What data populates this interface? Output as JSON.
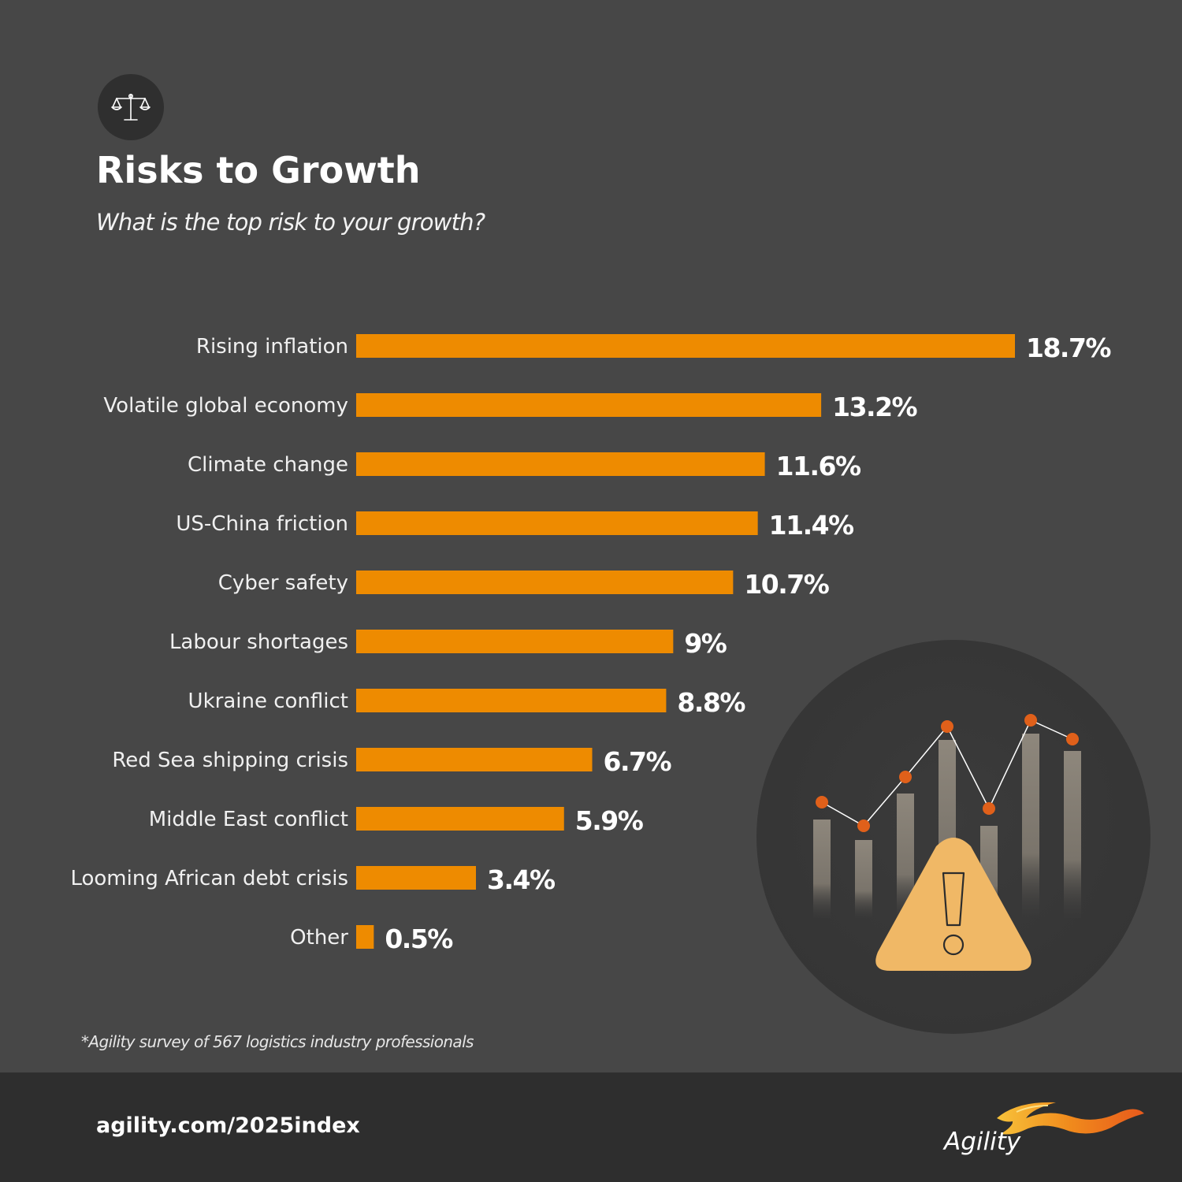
{
  "header": {
    "icon": "scales-icon",
    "title": "Risks to Growth",
    "subtitle": "What is the top risk to your growth?"
  },
  "chart_data": {
    "type": "bar",
    "orientation": "horizontal",
    "categories": [
      "Rising inflation",
      "Volatile global economy",
      "Climate change",
      "US-China friction",
      "Cyber safety",
      "Labour shortages",
      "Ukraine conflict",
      "Red Sea shipping crisis",
      "Middle East conflict",
      "Looming African debt crisis",
      "Other"
    ],
    "values": [
      18.7,
      13.2,
      11.6,
      11.4,
      10.7,
      9,
      8.8,
      6.7,
      5.9,
      3.4,
      0.5
    ],
    "value_labels": [
      "18.7%",
      "13.2%",
      "11.6%",
      "11.4%",
      "10.7%",
      "9%",
      "8.8%",
      "6.7%",
      "5.9%",
      "3.4%",
      "0.5%"
    ],
    "xlim": [
      0,
      18.7
    ],
    "grid": false,
    "legend": "none",
    "bar_color": "#ee8b00"
  },
  "illustration": {
    "icon": "warning-chart-icon",
    "accent_color": "#f0b866",
    "dot_color": "#e0601a"
  },
  "footnote": "*Agility survey of 567 logistics industry professionals",
  "footer": {
    "url": "agility.com/2025index",
    "logo_text": "Agility"
  },
  "colors": {
    "background": "#474747",
    "footer": "#2e2e2e",
    "bar": "#ee8b00"
  }
}
